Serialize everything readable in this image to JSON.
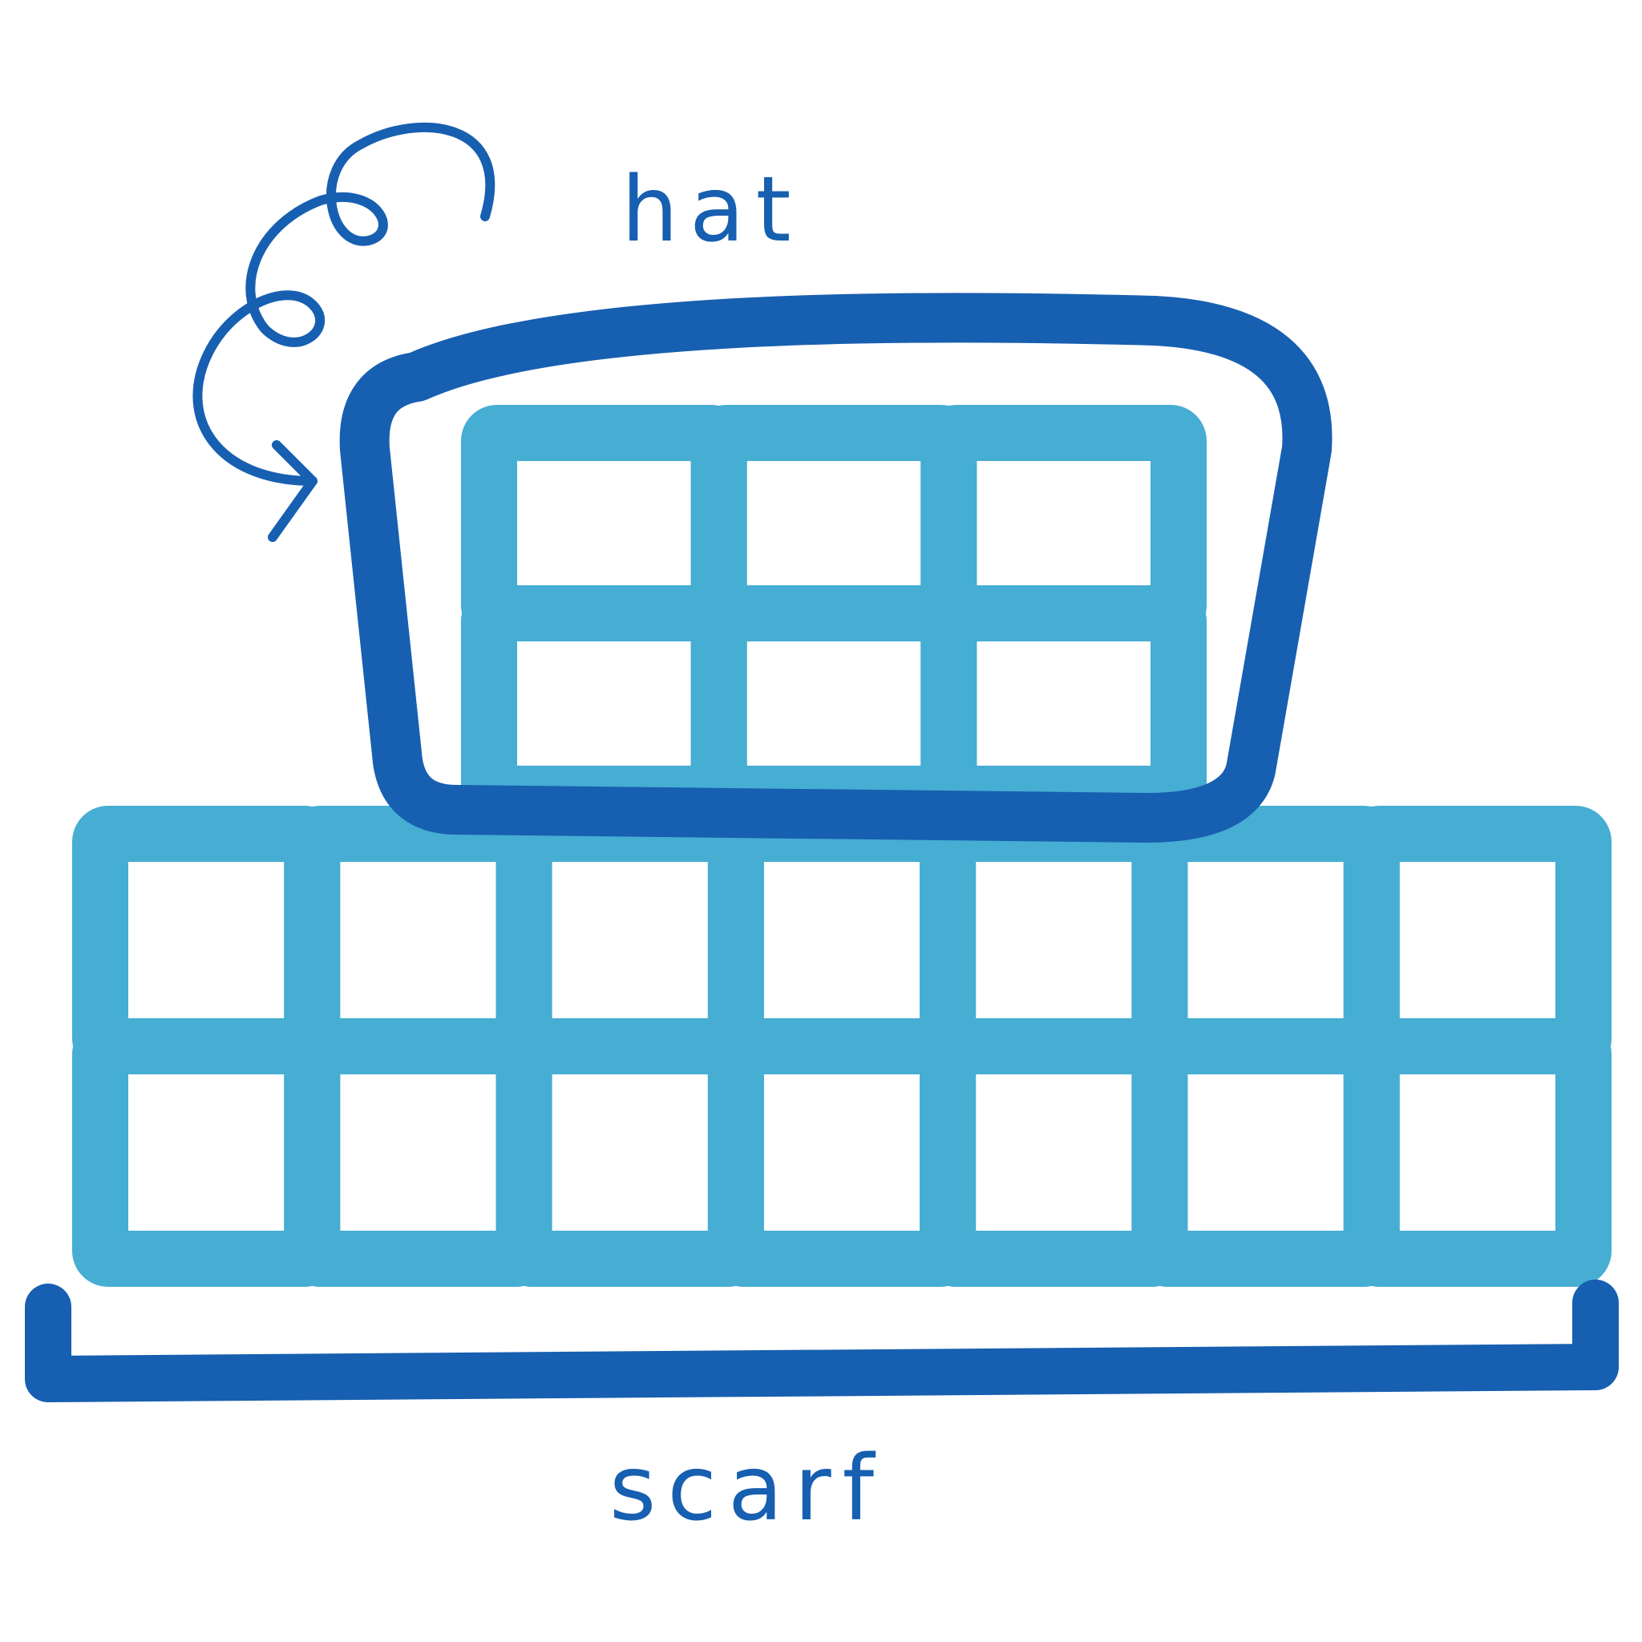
{
  "labels": {
    "hat": "hat",
    "scarf": "scarf"
  },
  "grid": {
    "hat": {
      "rows": 2,
      "cols": 3
    },
    "scarf": {
      "rows": 2,
      "cols": 7
    }
  },
  "colors": {
    "background": "#ffffff",
    "grid_light_blue": "#46ADD3",
    "outline_dark_blue": "#175FB0",
    "label_blue": "#175FB0"
  },
  "icons": [
    "curly-arrow-icon"
  ]
}
